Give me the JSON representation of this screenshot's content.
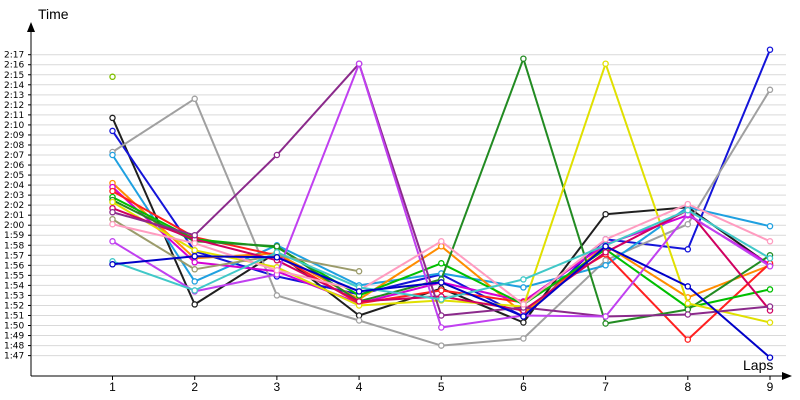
{
  "chart_data": {
    "type": "line",
    "ylabel": "Time",
    "xlabel": "Laps",
    "grid": true,
    "legend": "none",
    "x": [
      1,
      2,
      3,
      4,
      5,
      6,
      7,
      8,
      9
    ],
    "x_ticks": [
      "1",
      "2",
      "3",
      "4",
      "5",
      "6",
      "7",
      "8",
      "9"
    ],
    "y_ticks": [
      "1:47",
      "1:48",
      "1:49",
      "1:50",
      "1:51",
      "1:52",
      "1:53",
      "1:54",
      "1:55",
      "1:56",
      "1:57",
      "1:58",
      "1:59",
      "2:00",
      "2:01",
      "2:02",
      "2:03",
      "2:04",
      "2:05",
      "2:06",
      "2:07",
      "2:08",
      "2:09",
      "2:10",
      "2:11",
      "2:12",
      "2:13",
      "2:14",
      "2:15",
      "2:16",
      "2:17"
    ],
    "ylim": [
      "1:46",
      "2:18"
    ],
    "series": [
      {
        "color": "#7fbf00",
        "values": [
          "2:14.8",
          null,
          null,
          null,
          null,
          null,
          null,
          null,
          null
        ]
      },
      {
        "color": "#1f1f1f",
        "values": [
          "2:10.7",
          "1:52.1",
          "1:57.3",
          "1:51.0",
          "1:53.7",
          "1:50.3",
          "2:01.1",
          "2:01.8",
          "1:56.0"
        ]
      },
      {
        "color": "#1414d9",
        "values": [
          "2:09.4",
          "1:57.4",
          "1:54.9",
          "1:53.1",
          "1:55.1",
          "1:50.9",
          "1:58.6",
          "1:57.6",
          "2:17.5"
        ]
      },
      {
        "color": "#a0a0a0",
        "values": [
          "2:07.3",
          "2:12.6",
          "1:53.0",
          "1:50.5",
          "1:48.0",
          "1:48.7",
          "1:56.5",
          "2:00.1",
          "2:13.5"
        ]
      },
      {
        "color": "#1fa0e0",
        "values": [
          "2:07.0",
          "1:54.4",
          "1:58.0",
          "1:54.0",
          "1:55.2",
          "1:53.8",
          "1:56.0",
          "2:01.8",
          "1:59.9"
        ]
      },
      {
        "color": "#ff8c00",
        "values": [
          "2:04.2",
          "1:56.7",
          "1:57.2",
          "1:52.6",
          "1:57.9",
          "1:51.2",
          "1:58.0",
          "1:52.8",
          "1:56.0"
        ]
      },
      {
        "color": "#d400d4",
        "values": [
          "2:03.8",
          "1:56.3",
          "1:55.4",
          "1:52.2",
          "1:54.3",
          "1:52.4",
          "1:58.1",
          "2:01.0",
          "1:56.1"
        ]
      },
      {
        "color": "#ff2020",
        "values": [
          "2:03.4",
          "1:58.8",
          "1:57.0",
          "1:52.2",
          "1:53.5",
          "1:52.3",
          "1:57.1",
          "1:48.6",
          "1:56.2"
        ]
      },
      {
        "color": "#00bf00",
        "values": [
          "2:02.8",
          "1:58.6",
          "1:57.8",
          "1:53.0",
          "1:56.2",
          "1:52.1",
          "1:57.6",
          "1:51.8",
          "1:53.6"
        ]
      },
      {
        "color": "#228b22",
        "values": [
          "2:02.5",
          "1:58.4",
          "1:57.9",
          "1:52.4",
          "1:54.6",
          "2:16.6",
          "1:50.2",
          "1:51.6",
          "1:57.0"
        ]
      },
      {
        "color": "#e0e000",
        "values": [
          "2:02.3",
          "1:57.5",
          "1:55.8",
          "1:52.0",
          "1:52.5",
          "1:51.9",
          "2:16.1",
          "1:52.2",
          "1:50.3"
        ]
      },
      {
        "color": "#d00060",
        "values": [
          "2:01.7",
          "1:58.6",
          "1:56.5",
          "1:52.4",
          "1:52.9",
          "1:51.5",
          "1:57.3",
          "2:01.5",
          "1:51.5"
        ]
      },
      {
        "color": "#8b2a8b",
        "values": [
          "2:01.3",
          "1:59.0",
          "2:07.0",
          "2:16.1",
          "1:51.0",
          "1:51.8",
          "1:50.9",
          "1:51.1",
          "1:51.9"
        ]
      },
      {
        "color": "#c040f0",
        "values": [
          "1:58.4",
          "1:53.4",
          "1:55.1",
          "2:16.1",
          "1:49.8",
          "1:51.0",
          "1:50.9",
          "2:01.1",
          "1:55.9"
        ]
      },
      {
        "color": "#9b9b6b",
        "values": [
          "2:00.6",
          "1:55.6",
          "1:57.0",
          "1:55.4",
          null,
          null,
          null,
          null,
          null
        ]
      },
      {
        "color": "#ff9cc0",
        "values": [
          "2:00.1",
          "1:58.2",
          "1:55.5",
          "1:53.5",
          "1:58.4",
          "1:52.1",
          "1:58.6",
          "2:02.1",
          "1:58.4"
        ]
      },
      {
        "color": "#40c8c8",
        "values": [
          "1:56.4",
          "1:53.5",
          "1:57.3",
          "1:53.8",
          "1:52.6",
          "1:54.6",
          "1:58.0",
          "2:01.5",
          "1:56.7"
        ]
      },
      {
        "color": "#0000c8",
        "values": [
          "1:56.1",
          "1:56.9",
          "1:56.8",
          "1:53.4",
          "1:54.3",
          "1:50.9",
          "1:57.9",
          "1:53.9",
          "1:46.8"
        ]
      }
    ]
  }
}
